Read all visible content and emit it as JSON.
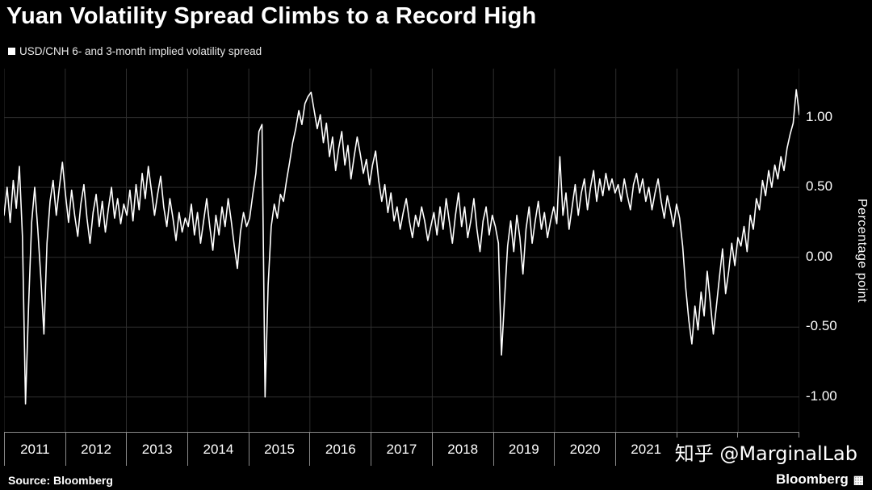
{
  "title": "Yuan Volatility Spread Climbs to a Record High",
  "legend": {
    "label": "USD/CNH 6- and 3-month implied volatility spread"
  },
  "source": "Source: Bloomberg",
  "brand": "Bloomberg",
  "watermark": "知乎 @MarginalLab",
  "colors": {
    "background": "#000000",
    "line": "#ffffff",
    "grid": "#2e2e2e",
    "axis": "#8a8a8a",
    "text": "#ffffff"
  },
  "chart_data": {
    "type": "line",
    "title": "Yuan Volatility Spread Climbs to a Record High",
    "series_label": "USD/CNH 6- and 3-month implied volatility spread",
    "ylabel": "Percentage point",
    "legend_position": "top-left",
    "grid": true,
    "x_start": 2011.0,
    "x_end": 2024.0,
    "x_tick_labels": [
      "2011",
      "2012",
      "2013",
      "2014",
      "2015",
      "2016",
      "2017",
      "2018",
      "2019",
      "2020",
      "2021",
      "2022",
      "2023"
    ],
    "y_ticks": [
      1.0,
      0.5,
      0.0,
      -0.5,
      -1.0
    ],
    "y_tick_labels": [
      "1.00",
      "0.50",
      "0.00",
      "-0.50",
      "-1.00"
    ],
    "ylim": [
      -1.25,
      1.35
    ],
    "values": [
      0.3,
      0.5,
      0.25,
      0.55,
      0.35,
      0.65,
      0.15,
      -1.05,
      -0.35,
      0.25,
      0.5,
      0.2,
      -0.15,
      -0.55,
      0.1,
      0.4,
      0.55,
      0.3,
      0.5,
      0.68,
      0.45,
      0.25,
      0.48,
      0.3,
      0.15,
      0.38,
      0.52,
      0.28,
      0.1,
      0.32,
      0.45,
      0.22,
      0.4,
      0.18,
      0.35,
      0.5,
      0.28,
      0.42,
      0.24,
      0.38,
      0.3,
      0.48,
      0.26,
      0.52,
      0.34,
      0.6,
      0.42,
      0.65,
      0.48,
      0.3,
      0.45,
      0.58,
      0.36,
      0.22,
      0.42,
      0.28,
      0.12,
      0.32,
      0.18,
      0.28,
      0.22,
      0.38,
      0.16,
      0.32,
      0.1,
      0.26,
      0.42,
      0.22,
      0.05,
      0.3,
      0.16,
      0.36,
      0.22,
      0.42,
      0.26,
      0.08,
      -0.08,
      0.18,
      0.32,
      0.22,
      0.28,
      0.45,
      0.6,
      0.9,
      0.95,
      -1.0,
      -0.2,
      0.22,
      0.38,
      0.28,
      0.45,
      0.4,
      0.55,
      0.68,
      0.82,
      0.92,
      1.05,
      0.95,
      1.1,
      1.15,
      1.18,
      1.05,
      0.92,
      1.02,
      0.82,
      0.96,
      0.72,
      0.86,
      0.62,
      0.78,
      0.9,
      0.66,
      0.8,
      0.56,
      0.72,
      0.86,
      0.74,
      0.6,
      0.7,
      0.52,
      0.66,
      0.76,
      0.55,
      0.4,
      0.52,
      0.32,
      0.46,
      0.26,
      0.36,
      0.2,
      0.32,
      0.42,
      0.26,
      0.14,
      0.3,
      0.22,
      0.36,
      0.26,
      0.12,
      0.22,
      0.32,
      0.16,
      0.36,
      0.2,
      0.42,
      0.26,
      0.1,
      0.3,
      0.46,
      0.22,
      0.36,
      0.14,
      0.26,
      0.42,
      0.2,
      0.04,
      0.26,
      0.36,
      0.16,
      0.3,
      0.22,
      0.1,
      -0.7,
      -0.3,
      0.08,
      0.26,
      0.04,
      0.3,
      0.14,
      -0.12,
      0.2,
      0.36,
      0.1,
      0.26,
      0.4,
      0.2,
      0.32,
      0.14,
      0.26,
      0.36,
      0.24,
      0.72,
      0.3,
      0.46,
      0.2,
      0.36,
      0.52,
      0.3,
      0.46,
      0.56,
      0.34,
      0.5,
      0.62,
      0.4,
      0.56,
      0.44,
      0.6,
      0.48,
      0.56,
      0.46,
      0.52,
      0.4,
      0.56,
      0.44,
      0.34,
      0.52,
      0.6,
      0.46,
      0.56,
      0.4,
      0.5,
      0.34,
      0.46,
      0.56,
      0.4,
      0.28,
      0.44,
      0.34,
      0.22,
      0.38,
      0.28,
      0.08,
      -0.22,
      -0.45,
      -0.62,
      -0.35,
      -0.52,
      -0.25,
      -0.42,
      -0.1,
      -0.32,
      -0.55,
      -0.35,
      -0.14,
      0.06,
      -0.26,
      -0.1,
      0.1,
      -0.06,
      0.14,
      0.08,
      0.22,
      0.04,
      0.3,
      0.2,
      0.42,
      0.34,
      0.55,
      0.44,
      0.62,
      0.5,
      0.66,
      0.56,
      0.72,
      0.62,
      0.78,
      0.88,
      0.96,
      1.2,
      1.02
    ]
  }
}
